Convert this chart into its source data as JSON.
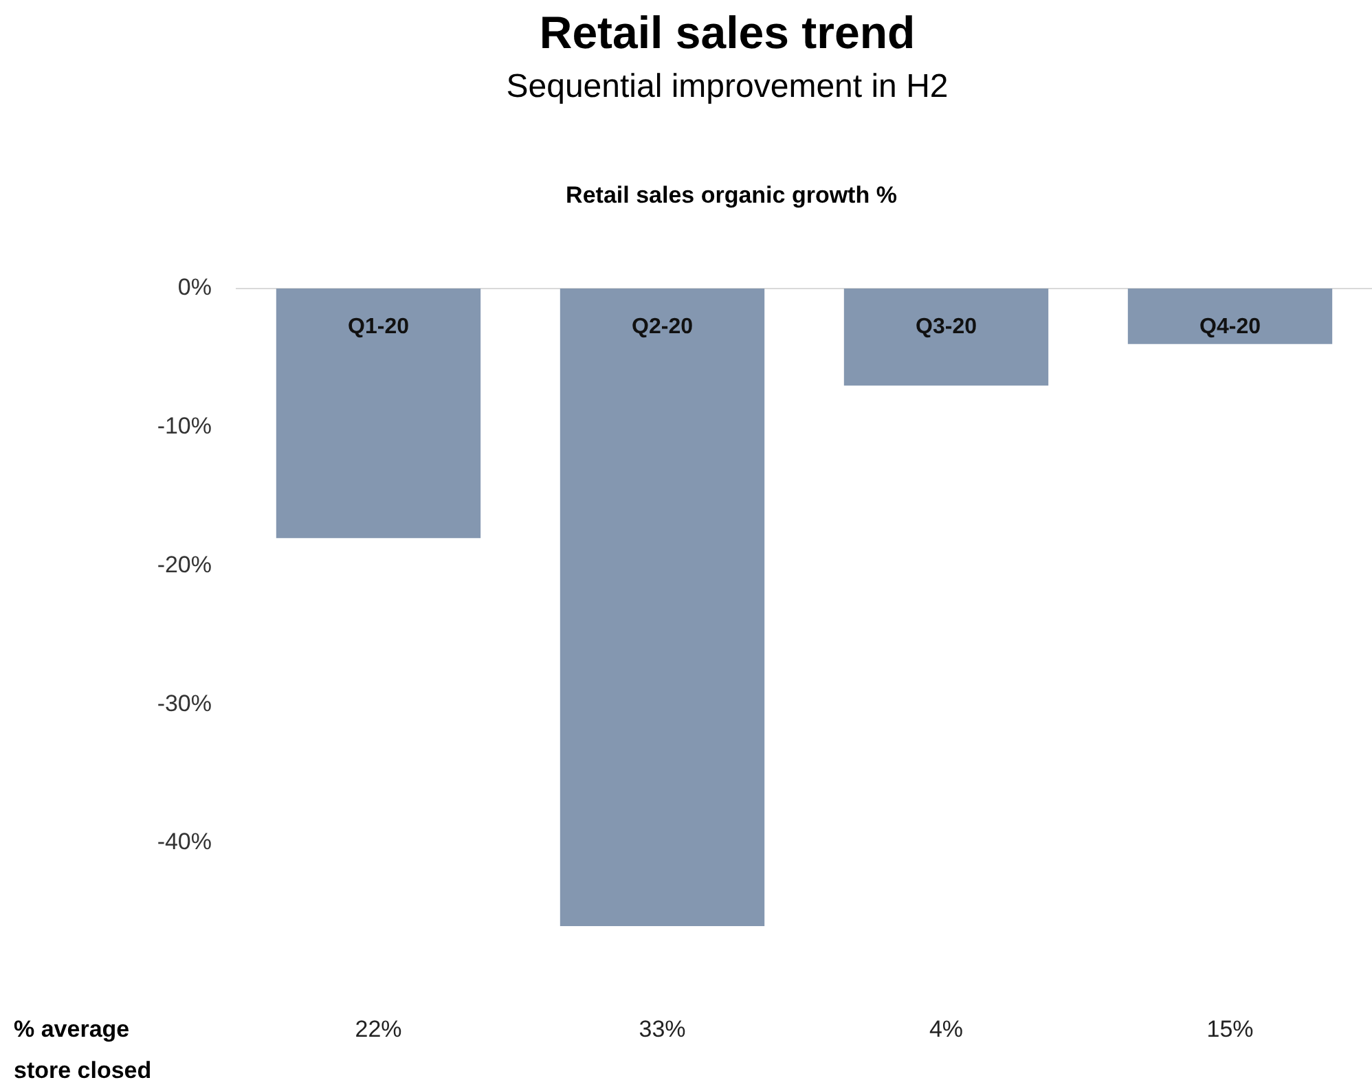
{
  "chart_data": {
    "type": "bar",
    "title": "Retail sales trend",
    "subtitle": "Sequential improvement in H2",
    "categories": [
      "Q1-20",
      "Q2-20",
      "Q3-20",
      "Q4-20"
    ],
    "values": [
      -18,
      -46,
      -7,
      -4
    ],
    "color": "#8497b0",
    "ylim": [
      -46,
      0
    ],
    "yticks": [
      {
        "value": 0,
        "label": "0%"
      },
      {
        "value": -10,
        "label": "-10%"
      },
      {
        "value": -20,
        "label": "-20%"
      },
      {
        "value": -30,
        "label": "-30%"
      },
      {
        "value": -40,
        "label": "-40%"
      }
    ],
    "grid": false,
    "legend": false,
    "annotations": [
      "Retail sales organic growth %",
      "% average store closed",
      "22%",
      "33%",
      "4%",
      "15%"
    ]
  }
}
